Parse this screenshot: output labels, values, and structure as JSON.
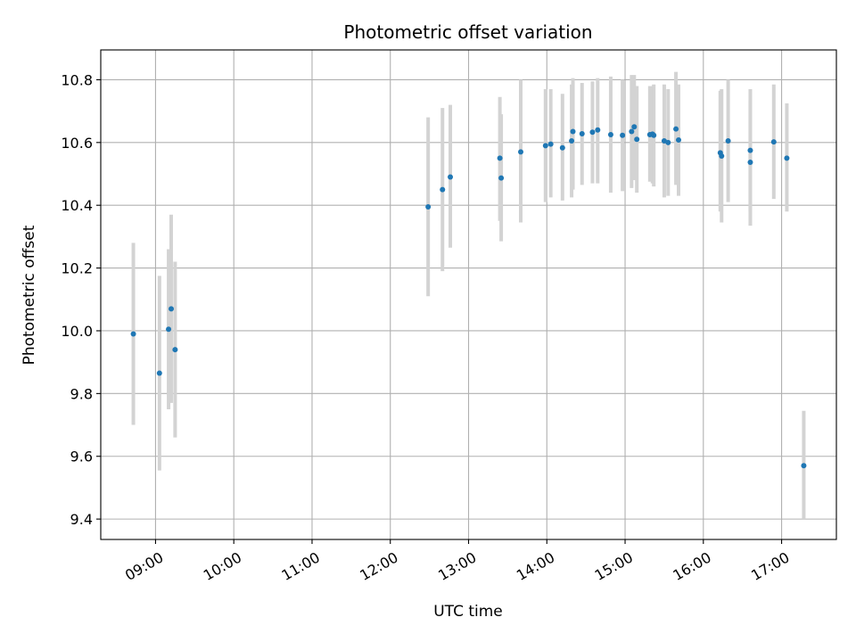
{
  "chart_data": {
    "type": "scatter",
    "title": "Photometric offset variation",
    "xlabel": "UTC time",
    "ylabel": "Photometric offset",
    "xlim": [
      "08:18",
      "17:42"
    ],
    "ylim": [
      9.335,
      10.895
    ],
    "x_ticks": [
      "09:00",
      "10:00",
      "11:00",
      "12:00",
      "13:00",
      "14:00",
      "15:00",
      "16:00",
      "17:00"
    ],
    "y_ticks": [
      9.4,
      9.6,
      9.8,
      10.0,
      10.2,
      10.4,
      10.6,
      10.8
    ],
    "y_tick_labels": [
      "9.4",
      "9.6",
      "9.8",
      "10.0",
      "10.2",
      "10.4",
      "10.6",
      "10.8"
    ],
    "grid": true,
    "colors": {
      "point": "#1f77b4",
      "errorbar": "#d3d3d3",
      "grid": "#b0b0b0"
    },
    "points": [
      {
        "x": "08:43",
        "y": 9.99,
        "ylow": 9.7,
        "yhigh": 10.28
      },
      {
        "x": "09:03",
        "y": 9.865,
        "ylow": 9.555,
        "yhigh": 10.175
      },
      {
        "x": "09:10",
        "y": 10.005,
        "ylow": 9.75,
        "yhigh": 10.26
      },
      {
        "x": "09:12",
        "y": 10.07,
        "ylow": 9.77,
        "yhigh": 10.37
      },
      {
        "x": "09:15",
        "y": 9.94,
        "ylow": 9.66,
        "yhigh": 10.22
      },
      {
        "x": "12:29",
        "y": 10.395,
        "ylow": 10.11,
        "yhigh": 10.68
      },
      {
        "x": "12:40",
        "y": 10.45,
        "ylow": 10.19,
        "yhigh": 10.71
      },
      {
        "x": "12:46",
        "y": 10.49,
        "ylow": 10.265,
        "yhigh": 10.72
      },
      {
        "x": "13:24",
        "y": 10.55,
        "ylow": 10.35,
        "yhigh": 10.745
      },
      {
        "x": "13:25",
        "y": 10.487,
        "ylow": 10.285,
        "yhigh": 10.69
      },
      {
        "x": "13:40",
        "y": 10.57,
        "ylow": 10.345,
        "yhigh": 10.8
      },
      {
        "x": "13:59",
        "y": 10.59,
        "ylow": 10.41,
        "yhigh": 10.77
      },
      {
        "x": "14:03",
        "y": 10.595,
        "ylow": 10.425,
        "yhigh": 10.77
      },
      {
        "x": "14:12",
        "y": 10.583,
        "ylow": 10.415,
        "yhigh": 10.755
      },
      {
        "x": "14:19",
        "y": 10.605,
        "ylow": 10.425,
        "yhigh": 10.785
      },
      {
        "x": "14:20",
        "y": 10.635,
        "ylow": 10.45,
        "yhigh": 10.805
      },
      {
        "x": "14:27",
        "y": 10.628,
        "ylow": 10.465,
        "yhigh": 10.79
      },
      {
        "x": "14:35",
        "y": 10.633,
        "ylow": 10.47,
        "yhigh": 10.795
      },
      {
        "x": "14:39",
        "y": 10.64,
        "ylow": 10.47,
        "yhigh": 10.805
      },
      {
        "x": "14:49",
        "y": 10.625,
        "ylow": 10.44,
        "yhigh": 10.81
      },
      {
        "x": "14:58",
        "y": 10.623,
        "ylow": 10.445,
        "yhigh": 10.8
      },
      {
        "x": "15:05",
        "y": 10.635,
        "ylow": 10.455,
        "yhigh": 10.815
      },
      {
        "x": "15:07",
        "y": 10.65,
        "ylow": 10.48,
        "yhigh": 10.815
      },
      {
        "x": "15:09",
        "y": 10.61,
        "ylow": 10.44,
        "yhigh": 10.78
      },
      {
        "x": "15:19",
        "y": 10.625,
        "ylow": 10.475,
        "yhigh": 10.78
      },
      {
        "x": "15:21",
        "y": 10.627,
        "ylow": 10.47,
        "yhigh": 10.78
      },
      {
        "x": "15:22",
        "y": 10.623,
        "ylow": 10.46,
        "yhigh": 10.785
      },
      {
        "x": "15:30",
        "y": 10.605,
        "ylow": 10.425,
        "yhigh": 10.785
      },
      {
        "x": "15:33",
        "y": 10.6,
        "ylow": 10.43,
        "yhigh": 10.77
      },
      {
        "x": "15:39",
        "y": 10.643,
        "ylow": 10.465,
        "yhigh": 10.825
      },
      {
        "x": "15:41",
        "y": 10.608,
        "ylow": 10.43,
        "yhigh": 10.785
      },
      {
        "x": "16:13",
        "y": 10.567,
        "ylow": 10.38,
        "yhigh": 10.765
      },
      {
        "x": "16:14",
        "y": 10.557,
        "ylow": 10.345,
        "yhigh": 10.77
      },
      {
        "x": "16:19",
        "y": 10.605,
        "ylow": 10.41,
        "yhigh": 10.8
      },
      {
        "x": "16:36",
        "y": 10.575,
        "ylow": 10.38,
        "yhigh": 10.735
      },
      {
        "x": "16:36",
        "y": 10.537,
        "ylow": 10.335,
        "yhigh": 10.77
      },
      {
        "x": "16:54",
        "y": 10.602,
        "ylow": 10.42,
        "yhigh": 10.785
      },
      {
        "x": "17:04",
        "y": 10.55,
        "ylow": 10.38,
        "yhigh": 10.725
      },
      {
        "x": "17:17",
        "y": 9.57,
        "ylow": 9.4,
        "yhigh": 9.745
      }
    ]
  }
}
